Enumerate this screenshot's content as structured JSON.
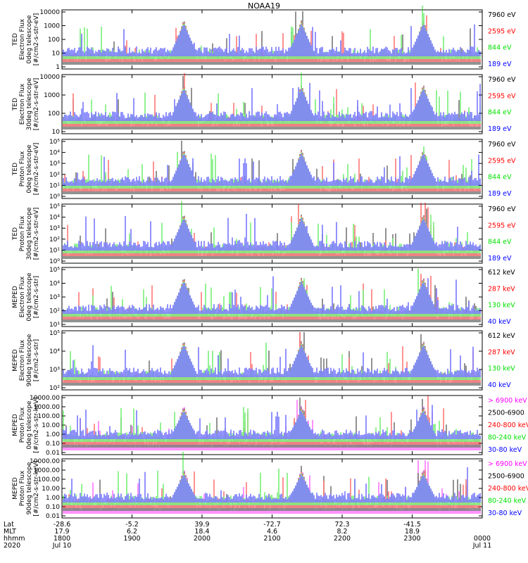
{
  "title": "NOAA19",
  "colors": {
    "black": "#000000",
    "red": "#ff0000",
    "green": "#00e000",
    "blue": "#0000ff",
    "magenta": "#ff00ff"
  },
  "chart_data": [
    {
      "type": "line",
      "panel": "ted_e_0",
      "ylabel": [
        "TED",
        "Electron Flux",
        "0deg telescope",
        "[#/cm2-s-str-eV]"
      ],
      "yticks": [
        "10000",
        "1000",
        "100",
        "10",
        "1"
      ],
      "legend": [
        {
          "label": "7960 eV",
          "color": "#000000"
        },
        {
          "label": "2595 eV",
          "color": "#ff0000"
        },
        {
          "label": "844 eV",
          "color": "#00e000"
        },
        {
          "label": "189 eV",
          "color": "#0000ff"
        }
      ]
    },
    {
      "type": "line",
      "panel": "ted_e_30",
      "ylabel": [
        "TED",
        "Electron Flux",
        "30deg telescope",
        "[#/cm2-s-str-eV]"
      ],
      "yticks": [
        "10000",
        "1000",
        "100",
        "10"
      ],
      "legend": [
        {
          "label": "7960 eV",
          "color": "#000000"
        },
        {
          "label": "2595 eV",
          "color": "#ff0000"
        },
        {
          "label": "844 eV",
          "color": "#00e000"
        },
        {
          "label": "189 eV",
          "color": "#0000ff"
        }
      ]
    },
    {
      "type": "line",
      "panel": "ted_p_0",
      "ylabel": [
        "TED",
        "Proton Flux",
        "0deg telescope",
        "[#/cm2-s-str-eV]"
      ],
      "yticks": [
        "10⁵",
        "10⁴",
        "10³",
        "10²",
        "10¹",
        "10⁰"
      ],
      "legend": [
        {
          "label": "7960 eV",
          "color": "#000000"
        },
        {
          "label": "2595 eV",
          "color": "#ff0000"
        },
        {
          "label": "844 eV",
          "color": "#00e000"
        },
        {
          "label": "189 eV",
          "color": "#0000ff"
        }
      ]
    },
    {
      "type": "line",
      "panel": "ted_p_30",
      "ylabel": [
        "TED",
        "Proton Flux",
        "30deg telescope",
        "[#/cm2-s-str-eV]"
      ],
      "yticks": [
        "10⁵",
        "10⁴",
        "10³",
        "10²",
        "10¹",
        "10⁰"
      ],
      "legend": [
        {
          "label": "7960 eV",
          "color": "#000000"
        },
        {
          "label": "2595 eV",
          "color": "#ff0000"
        },
        {
          "label": "844 eV",
          "color": "#00e000"
        },
        {
          "label": "189 eV",
          "color": "#0000ff"
        }
      ]
    },
    {
      "type": "line",
      "panel": "mep_e_0",
      "ylabel": [
        "MEPED",
        "Electron Flux",
        "0deg telescope",
        "[#/cm2-s-str]"
      ],
      "yticks": [
        "10⁵",
        "10⁴",
        "10³",
        "10²",
        "10¹"
      ],
      "legend": [
        {
          "label": "612 keV",
          "color": "#000000"
        },
        {
          "label": "287 keV",
          "color": "#ff0000"
        },
        {
          "label": "130 keV",
          "color": "#00e000"
        },
        {
          "label": "40 keV",
          "color": "#0000ff"
        }
      ]
    },
    {
      "type": "line",
      "panel": "mep_e_90",
      "ylabel": [
        "MEPED",
        "Electron Flux",
        "90deg telescope",
        "[#/cm2-s-str]"
      ],
      "yticks": [
        "10⁵",
        "10⁴",
        "10³",
        "10²"
      ],
      "legend": [
        {
          "label": "612 keV",
          "color": "#000000"
        },
        {
          "label": "287 keV",
          "color": "#ff0000"
        },
        {
          "label": "130 keV",
          "color": "#00e000"
        },
        {
          "label": "40 keV",
          "color": "#0000ff"
        }
      ]
    },
    {
      "type": "line",
      "panel": "mep_p_0",
      "ylabel": [
        "MEPED",
        "Proton Flux",
        "0deg telescope",
        "[#/cm2-s-str-keV]"
      ],
      "yticks": [
        "10000.00",
        "1000.00",
        "100.00",
        "10.00",
        "1.00",
        "0.10",
        "0.01"
      ],
      "legend": [
        {
          "label": "> 6900 keV",
          "color": "#ff00ff"
        },
        {
          "label": "2500-6900",
          "color": "#000000"
        },
        {
          "label": "240-800 keV",
          "color": "#ff0000"
        },
        {
          "label": "80-240 keV",
          "color": "#00e000"
        },
        {
          "label": "30-80 keV",
          "color": "#0000ff"
        }
      ]
    },
    {
      "type": "line",
      "panel": "mep_p_90",
      "ylabel": [
        "MEPED",
        "Proton Flux",
        "90deg telescope",
        "[#/cm2-s-str-keV]"
      ],
      "yticks": [
        "10000.00",
        "1000.00",
        "100.00",
        "10.00",
        "1.00",
        "0.10",
        "0.01"
      ],
      "legend": [
        {
          "label": "> 6900 keV",
          "color": "#ff00ff"
        },
        {
          "label": "2500-6900",
          "color": "#000000"
        },
        {
          "label": "240-800 keV",
          "color": "#ff0000"
        },
        {
          "label": "80-240 keV",
          "color": "#00e000"
        },
        {
          "label": "30-80 keV",
          "color": "#0000ff"
        }
      ]
    }
  ],
  "xaxis": {
    "row_labels": [
      "Lat",
      "MLT",
      "hhmm",
      "2020"
    ],
    "ticks": [
      {
        "frac": 0.0,
        "lat": "-28.6",
        "mlt": "17.9",
        "hhmm": "1800",
        "date": "Jul 10"
      },
      {
        "frac": 0.1667,
        "lat": "-5.2",
        "mlt": "6.2",
        "hhmm": "1900",
        "date": ""
      },
      {
        "frac": 0.3333,
        "lat": "39.9",
        "mlt": "18.4",
        "hhmm": "2000",
        "date": ""
      },
      {
        "frac": 0.5,
        "lat": "-72.7",
        "mlt": "4.6",
        "hhmm": "2100",
        "date": ""
      },
      {
        "frac": 0.6667,
        "lat": "72.3",
        "mlt": "8.2",
        "hhmm": "2200",
        "date": ""
      },
      {
        "frac": 0.8333,
        "lat": "-41.5",
        "mlt": "18.9",
        "hhmm": "2300",
        "date": ""
      },
      {
        "frac": 1.0,
        "lat": "",
        "mlt": "",
        "hhmm": "0000",
        "date": "Jul 11"
      }
    ]
  }
}
